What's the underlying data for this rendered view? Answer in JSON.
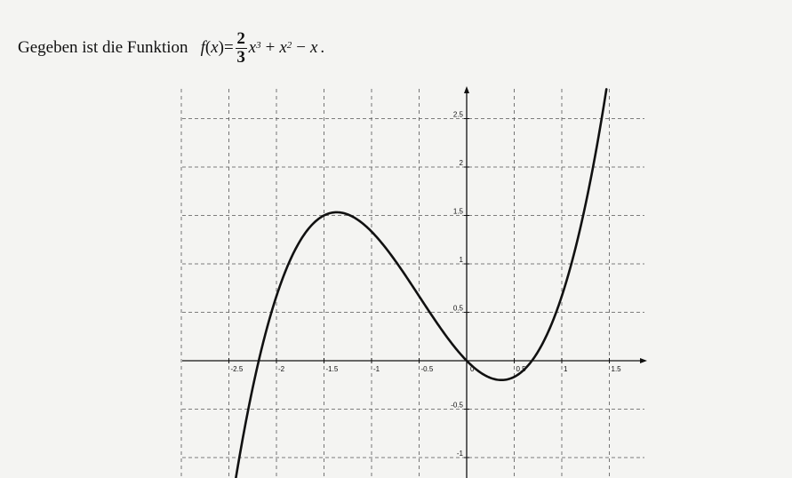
{
  "heading": {
    "intro": "Gegeben ist die Funktion",
    "function_name": "f",
    "variable": "x",
    "coef_num": "2",
    "coef_den": "3",
    "exp3": "3",
    "exp2": "2",
    "plus": "+",
    "minus": "−",
    "period": "."
  },
  "chart_data": {
    "type": "line",
    "title": "",
    "xlabel": "",
    "ylabel": "",
    "xlim": [
      -2.6,
      1.9
    ],
    "ylim": [
      -1.1,
      2.8
    ],
    "grid": true,
    "x_ticks": [
      {
        "value": -2.5,
        "label": "-2.5"
      },
      {
        "value": -2,
        "label": "-2"
      },
      {
        "value": -1.5,
        "label": "-1.5"
      },
      {
        "value": -1,
        "label": "-1"
      },
      {
        "value": -0.5,
        "label": "-0.5"
      },
      {
        "value": 0.5,
        "label": "0.5"
      },
      {
        "value": 1,
        "label": "1"
      },
      {
        "value": 1.5,
        "label": "1.5"
      }
    ],
    "y_ticks": [
      {
        "value": -1,
        "label": "-1"
      },
      {
        "value": -0.5,
        "label": "-0.5"
      },
      {
        "value": 0.5,
        "label": "0.5"
      },
      {
        "value": 1,
        "label": "1"
      },
      {
        "value": 1.5,
        "label": "1.5"
      },
      {
        "value": 2,
        "label": "2"
      },
      {
        "value": 2.5,
        "label": "2.5"
      }
    ],
    "origin_label": "0",
    "series": [
      {
        "name": "f",
        "function": "2/3*x^3 + x^2 - x",
        "domain": [
          -2.6,
          1.5
        ],
        "color": "#111111"
      }
    ]
  }
}
